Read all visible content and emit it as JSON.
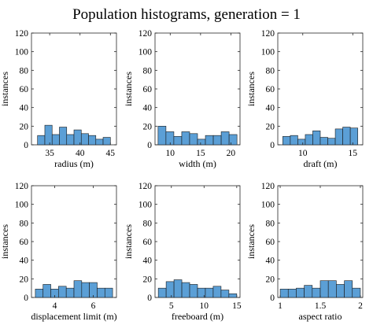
{
  "title": "Population histograms, generation = 1",
  "bar_color": "#5b9fd6",
  "chart_data": [
    {
      "type": "bar",
      "xlabel": "radius (m)",
      "ylabel": "instances",
      "xlim": [
        32,
        46
      ],
      "ylim": [
        0,
        120
      ],
      "xticks": [
        35,
        40,
        45
      ],
      "yticks": [
        0,
        20,
        40,
        60,
        80,
        100,
        120
      ],
      "bin_edges": [
        33,
        34.2,
        35.4,
        36.6,
        37.8,
        39,
        40.2,
        41.4,
        42.6,
        43.8,
        45
      ],
      "values": [
        10,
        21,
        11,
        19,
        11,
        16,
        12,
        10,
        6,
        8
      ]
    },
    {
      "type": "bar",
      "xlabel": "width (m)",
      "ylabel": "instances",
      "xlim": [
        7.5,
        21.5
      ],
      "ylim": [
        0,
        120
      ],
      "xticks": [
        10,
        15,
        20
      ],
      "yticks": [
        0,
        20,
        40,
        60,
        80,
        100,
        120
      ],
      "bin_edges": [
        8,
        9.3,
        10.6,
        11.9,
        13.2,
        14.5,
        15.8,
        17.1,
        18.4,
        19.7,
        21
      ],
      "values": [
        20,
        14,
        9,
        14,
        12,
        6,
        10,
        10,
        14,
        11
      ]
    },
    {
      "type": "bar",
      "xlabel": "draft (m)",
      "ylabel": "instances",
      "xlim": [
        7.5,
        16
      ],
      "ylim": [
        0,
        120
      ],
      "xticks": [
        10,
        15
      ],
      "yticks": [
        0,
        20,
        40,
        60,
        80,
        100,
        120
      ],
      "bin_edges": [
        8,
        8.75,
        9.5,
        10.25,
        11,
        11.75,
        12.5,
        13.25,
        14,
        14.75,
        15.5
      ],
      "values": [
        9,
        10,
        6,
        11,
        15,
        8,
        7,
        17,
        19,
        18
      ]
    },
    {
      "type": "bar",
      "xlabel": "displacement limit (m)",
      "ylabel": "instances",
      "xlim": [
        2.8,
        7.2
      ],
      "ylim": [
        0,
        120
      ],
      "xticks": [
        4,
        6
      ],
      "yticks": [
        0,
        20,
        40,
        60,
        80,
        100,
        120
      ],
      "bin_edges": [
        3,
        3.4,
        3.8,
        4.2,
        4.6,
        5,
        5.4,
        5.8,
        6.2,
        6.6,
        7
      ],
      "values": [
        9,
        14,
        9,
        12,
        10,
        18,
        16,
        16,
        10,
        10
      ]
    },
    {
      "type": "bar",
      "xlabel": "freeboard (m)",
      "ylabel": "instances",
      "xlim": [
        2.5,
        15.5
      ],
      "ylim": [
        0,
        120
      ],
      "xticks": [
        5,
        10,
        15
      ],
      "yticks": [
        0,
        20,
        40,
        60,
        80,
        100,
        120
      ],
      "bin_edges": [
        3,
        4.2,
        5.4,
        6.6,
        7.8,
        9,
        10.2,
        11.4,
        12.6,
        13.8,
        15
      ],
      "values": [
        10,
        17,
        19,
        16,
        14,
        10,
        10,
        12,
        8,
        4
      ]
    },
    {
      "type": "bar",
      "xlabel": "aspect ratio",
      "ylabel": "instances",
      "xlim": [
        0.97,
        2.03
      ],
      "ylim": [
        0,
        120
      ],
      "xticks": [
        1,
        1.5,
        2
      ],
      "yticks": [
        0,
        20,
        40,
        60,
        80,
        100,
        120
      ],
      "bin_edges": [
        1,
        1.1,
        1.2,
        1.3,
        1.4,
        1.5,
        1.6,
        1.7,
        1.8,
        1.9,
        2
      ],
      "values": [
        9,
        9,
        10,
        13,
        10,
        18,
        18,
        14,
        18,
        10
      ]
    }
  ]
}
